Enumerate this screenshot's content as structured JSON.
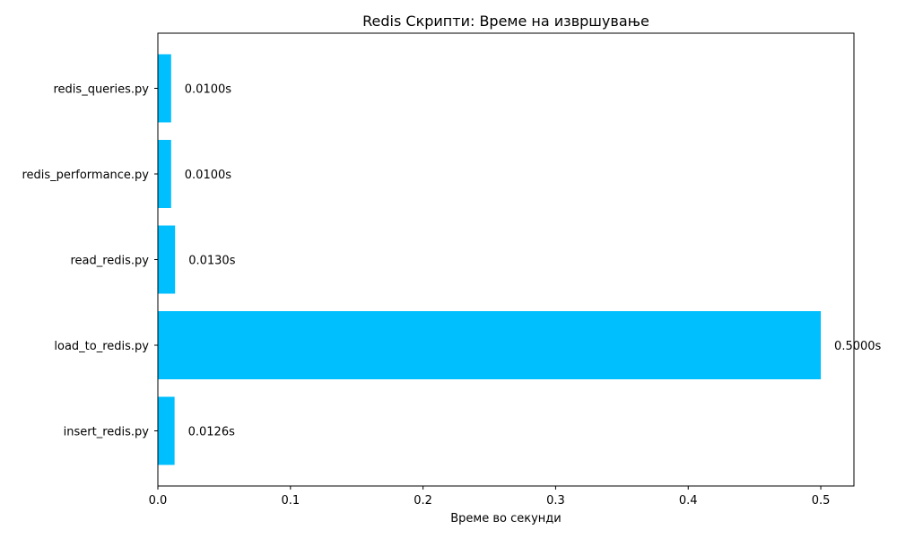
{
  "chart_data": {
    "type": "bar",
    "orientation": "horizontal",
    "title": "Redis Скрипти: Време на извршување",
    "xlabel": "Време во секунди",
    "ylabel": "",
    "categories": [
      "insert_redis.py",
      "load_to_redis.py",
      "read_redis.py",
      "redis_performance.py",
      "redis_queries.py"
    ],
    "values": [
      0.0126,
      0.5,
      0.013,
      0.01,
      0.01
    ],
    "value_labels": [
      "0.0126s",
      "0.5000s",
      "0.0130s",
      "0.0100s",
      "0.0100s"
    ],
    "xlim": [
      0,
      0.525
    ],
    "xticks": [
      0.0,
      0.1,
      0.2,
      0.3,
      0.4,
      0.5
    ],
    "xtick_labels": [
      "0.0",
      "0.1",
      "0.2",
      "0.3",
      "0.4",
      "0.5"
    ],
    "grid": false,
    "bar_color": "#00BFFF"
  }
}
